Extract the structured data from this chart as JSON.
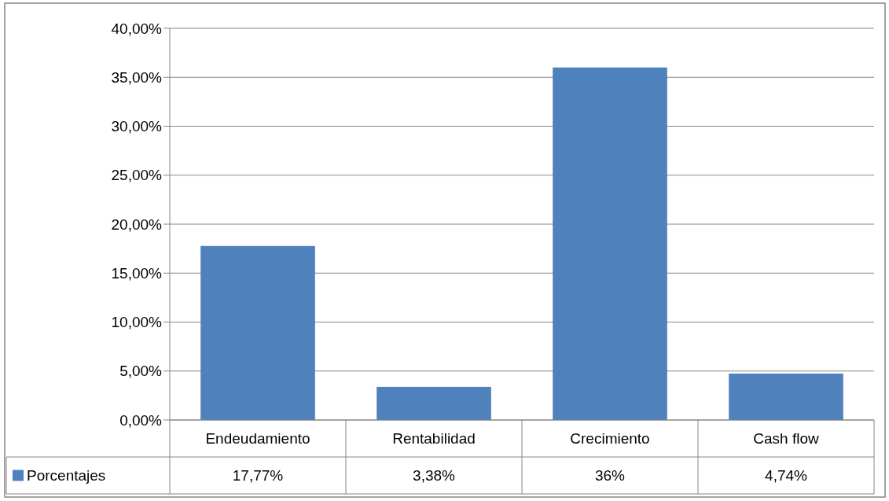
{
  "chart_data": {
    "type": "bar",
    "categories": [
      "Endeudamiento",
      "Rentabilidad",
      "Crecimiento",
      "Cash flow"
    ],
    "series": [
      {
        "name": "Porcentajes",
        "color": "#4f81bd",
        "values": [
          17.77,
          3.38,
          36,
          4.74
        ],
        "value_labels": [
          "17,77%",
          "3,38%",
          "36%",
          "4,74%"
        ]
      }
    ],
    "ylim": [
      0,
      40
    ],
    "yticks": [
      {
        "value": 0,
        "label": "0,00%"
      },
      {
        "value": 5,
        "label": "5,00%"
      },
      {
        "value": 10,
        "label": "10,00%"
      },
      {
        "value": 15,
        "label": "15,00%"
      },
      {
        "value": 20,
        "label": "20,00%"
      },
      {
        "value": 25,
        "label": "25,00%"
      },
      {
        "value": 30,
        "label": "30,00%"
      },
      {
        "value": 35,
        "label": "35,00%"
      },
      {
        "value": 40,
        "label": "40,00%"
      }
    ],
    "grid": "y",
    "legend": "bottom"
  }
}
